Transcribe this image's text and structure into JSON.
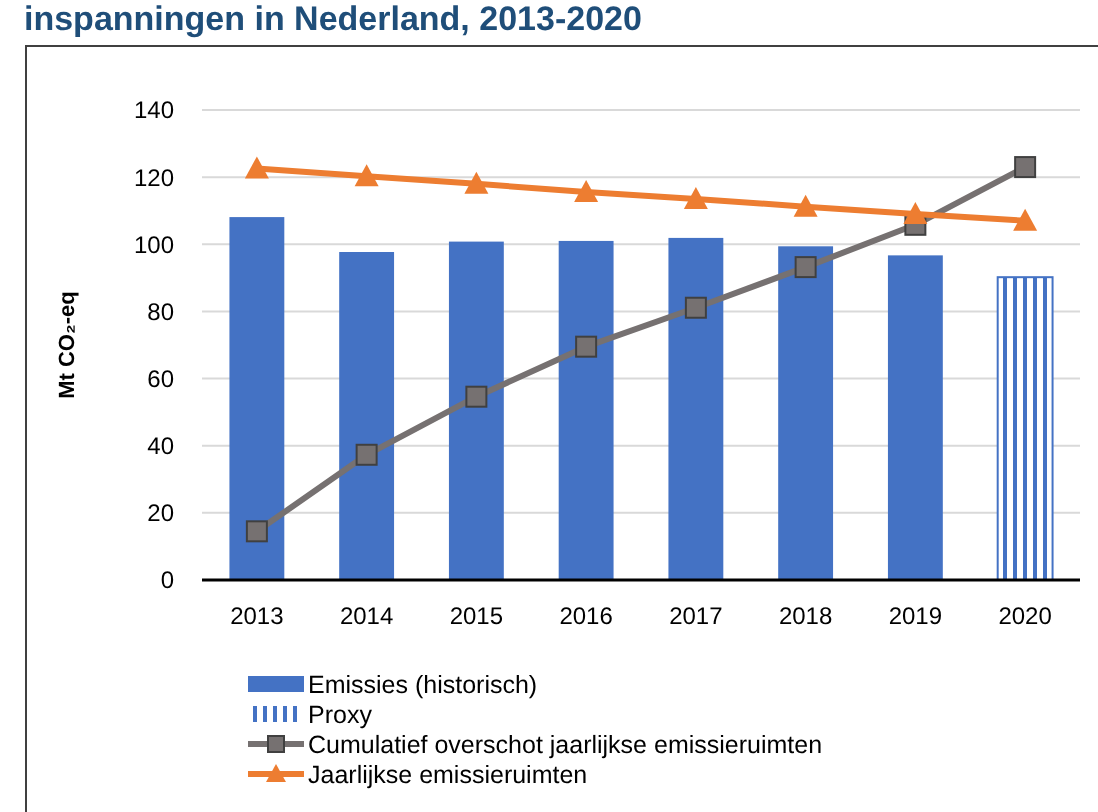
{
  "chart_data": {
    "type": "bar",
    "title": "inspanningen in Nederland, 2013-2020",
    "ylabel": "Mt CO₂-eq",
    "categories": [
      "2013",
      "2014",
      "2015",
      "2016",
      "2017",
      "2018",
      "2019",
      "2020"
    ],
    "ylim": [
      0,
      140
    ],
    "yticks": [
      0,
      20,
      40,
      60,
      80,
      100,
      120,
      140
    ],
    "grid": "y",
    "legend": "bottom",
    "series": [
      {
        "name": "Emissies (historisch)",
        "color": "#4472c4",
        "values": [
          108.1,
          97.7,
          100.8,
          101,
          101.9,
          99.4,
          96.7,
          null
        ]
      },
      {
        "name": "Proxy",
        "color": "#4472c4",
        "values": [
          null,
          null,
          null,
          null,
          null,
          null,
          null,
          90.2
        ]
      },
      {
        "name": "Cumulatief overschot jaarlijkse emissieruimten",
        "type": "line",
        "color": "#767171",
        "marker": "square",
        "values": [
          14.5,
          37.3,
          54.6,
          69.5,
          81.1,
          93.2,
          105.8,
          123
        ]
      },
      {
        "name": "Jaarlijkse emissieruimten",
        "type": "line",
        "color": "#ed7d31",
        "marker": "triangle",
        "values": [
          122.6,
          120.3,
          118,
          115.6,
          113.5,
          111.2,
          109,
          107
        ]
      }
    ]
  }
}
